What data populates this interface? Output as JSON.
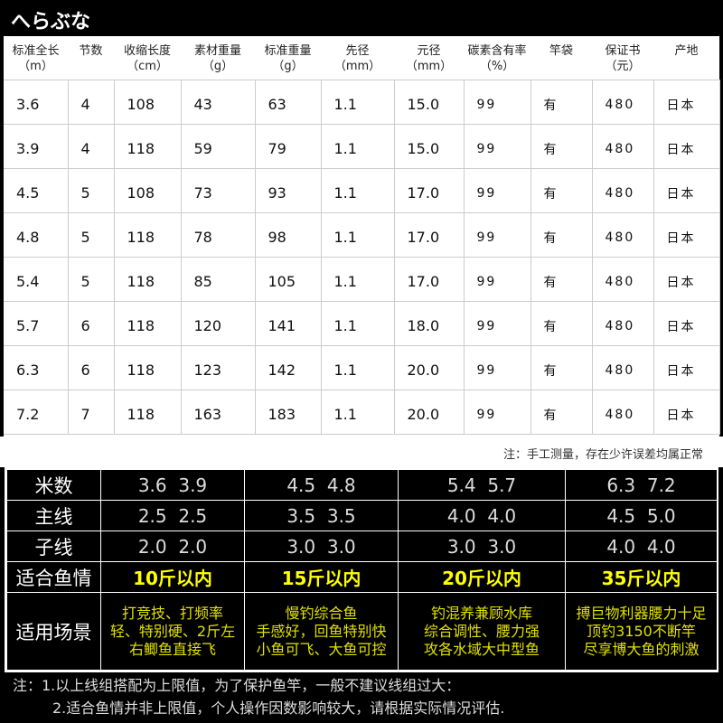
{
  "title": "へらぶな",
  "spec_table": {
    "headers": [
      [
        "标准全长",
        "（m）"
      ],
      [
        "节数",
        ""
      ],
      [
        "收缩长度",
        "（cm）"
      ],
      [
        "素材重量",
        "（g）"
      ],
      [
        "标准重量",
        "（g）"
      ],
      [
        "先径",
        "（mm）"
      ],
      [
        "元径",
        "（mm）"
      ],
      [
        "碳素含有率",
        "（%）"
      ],
      [
        "竿袋",
        ""
      ],
      [
        "保证书",
        "（元）"
      ],
      [
        "产地",
        ""
      ]
    ],
    "rows": [
      [
        "3.6",
        "4",
        "108",
        "43",
        "63",
        "1.1",
        "15.0",
        "99",
        "有",
        "480",
        "日本"
      ],
      [
        "3.9",
        "4",
        "118",
        "59",
        "79",
        "1.1",
        "15.0",
        "99",
        "有",
        "480",
        "日本"
      ],
      [
        "4.5",
        "5",
        "108",
        "73",
        "93",
        "1.1",
        "17.0",
        "99",
        "有",
        "480",
        "日本"
      ],
      [
        "4.8",
        "5",
        "118",
        "78",
        "98",
        "1.1",
        "17.0",
        "99",
        "有",
        "480",
        "日本"
      ],
      [
        "5.4",
        "5",
        "118",
        "85",
        "105",
        "1.1",
        "17.0",
        "99",
        "有",
        "480",
        "日本"
      ],
      [
        "5.7",
        "6",
        "118",
        "120",
        "141",
        "1.1",
        "18.0",
        "99",
        "有",
        "480",
        "日本"
      ],
      [
        "6.3",
        "6",
        "118",
        "123",
        "142",
        "1.1",
        "20.0",
        "99",
        "有",
        "480",
        "日本"
      ],
      [
        "7.2",
        "7",
        "118",
        "163",
        "183",
        "1.1",
        "20.0",
        "99",
        "有",
        "480",
        "日本"
      ]
    ]
  },
  "measure_note": "注：手工测量，存在少许误差均属正常",
  "line_table": {
    "rows": [
      {
        "label": "米数",
        "values": [
          "3.6  3.9",
          "4.5  4.8",
          "5.4  5.7",
          "6.3  7.2"
        ]
      },
      {
        "label": "主线",
        "values": [
          "2.5  2.5",
          "3.5  3.5",
          "4.0  4.0",
          "4.5  5.0"
        ]
      },
      {
        "label": "子线",
        "values": [
          "2.0  2.0",
          "3.0  3.0",
          "3.0  3.0",
          "4.0  4.0"
        ]
      },
      {
        "label": "适合鱼情",
        "values": [
          "10斤以内",
          "15斤以内",
          "20斤以内",
          "35斤以内"
        ]
      },
      {
        "label": "适用场景",
        "values": [
          [
            "打竞技、打频率",
            "轻、特别硬、2斤左",
            "右鲫鱼直接飞"
          ],
          [
            "慢钓综合鱼",
            "手感好，回鱼特别快",
            "小鱼可飞、大鱼可控"
          ],
          [
            "钓混养兼顾水库",
            "综合调性、腰力强",
            "攻各水域大中型鱼"
          ],
          [
            "搏巨物利器腰力十足",
            "顶钓3150不断竿",
            "尽享博大鱼的刺激"
          ]
        ]
      }
    ]
  },
  "footnotes": [
    "注：1.以上线组搭配为上限值，为了保护鱼竿，一般不建议线组过大：",
    "2.适合鱼情并非上限值，个人操作因数影响较大，请根据实际情况评估."
  ],
  "colors": {
    "highlight": "#ffff00",
    "background": "#000000"
  }
}
